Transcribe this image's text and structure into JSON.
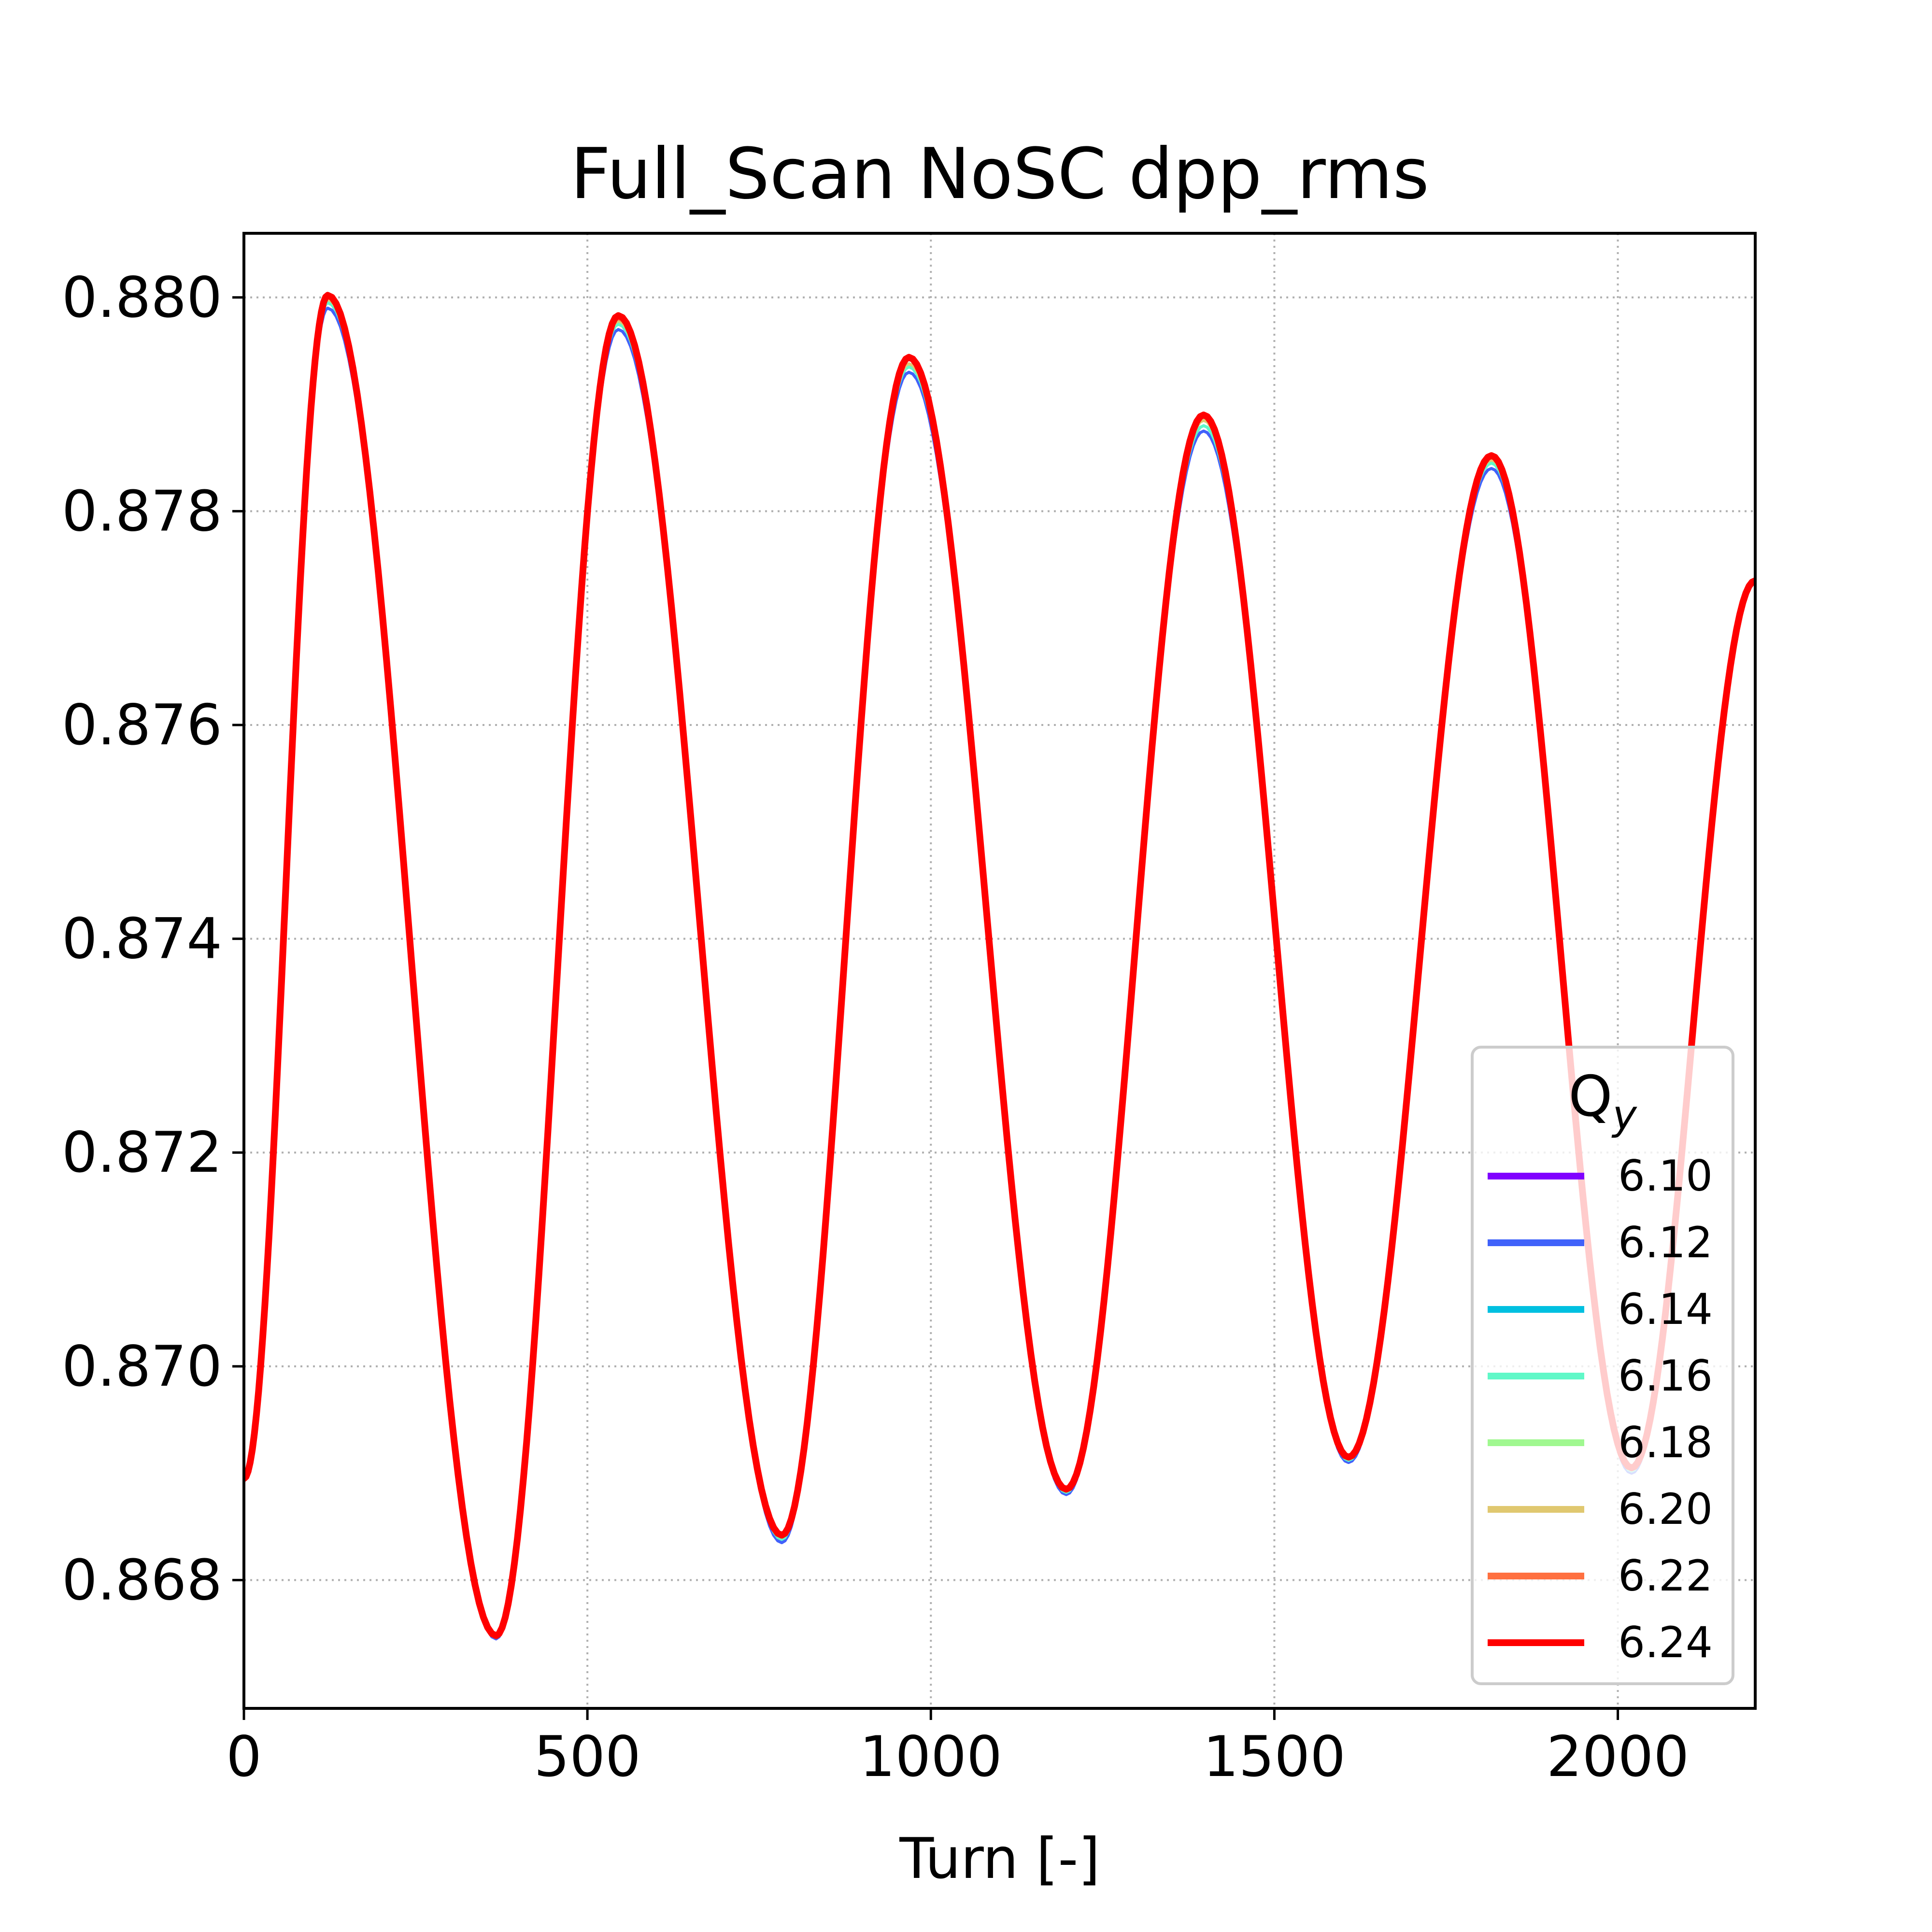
{
  "chart_data": {
    "type": "line",
    "title": "Full_Scan NoSC dpp_rms",
    "xlabel": "Turn [-]",
    "ylabel": "",
    "xlim": [
      0,
      2200
    ],
    "ylim": [
      0.8668,
      0.8806
    ],
    "x_ticks": [
      "0",
      "500",
      "1000",
      "1500",
      "2000"
    ],
    "x_tick_values": [
      0,
      500,
      1000,
      1500,
      2000
    ],
    "y_ticks": [
      "0.868",
      "0.870",
      "0.872",
      "0.874",
      "0.876",
      "0.878",
      "0.880"
    ],
    "y_tick_values": [
      0.868,
      0.87,
      0.872,
      0.874,
      0.876,
      0.878,
      0.88
    ],
    "grid": true,
    "legend": {
      "title_main": "Q",
      "title_sub": "y",
      "placement": "lower-right"
    },
    "x": [
      0,
      122,
      367,
      545,
      783,
      968,
      1197,
      1397,
      1608,
      1816,
      2020,
      2200
    ],
    "series": [
      {
        "name": "6.10",
        "color": "#8000ff",
        "values": [
          0.86895,
          0.8799,
          0.86745,
          0.8797,
          0.86835,
          0.8793,
          0.8688,
          0.87875,
          0.8691,
          0.8784,
          0.869,
          0.87735
        ]
      },
      {
        "name": "6.12",
        "color": "#4062fa",
        "values": [
          0.86895,
          0.8799,
          0.86745,
          0.8797,
          0.86835,
          0.8793,
          0.8688,
          0.87875,
          0.8691,
          0.8784,
          0.869,
          0.87735
        ]
      },
      {
        "name": "6.14",
        "color": "#00c0e0",
        "values": [
          0.86895,
          0.87995,
          0.86746,
          0.87975,
          0.86838,
          0.87935,
          0.86882,
          0.8788,
          0.86912,
          0.87845,
          0.86902,
          0.87735
        ]
      },
      {
        "name": "6.16",
        "color": "#60f8c8",
        "values": [
          0.86895,
          0.87995,
          0.86746,
          0.87975,
          0.86838,
          0.87935,
          0.86882,
          0.8788,
          0.86912,
          0.87845,
          0.86902,
          0.87735
        ]
      },
      {
        "name": "6.18",
        "color": "#a0f890",
        "values": [
          0.86895,
          0.87998,
          0.86747,
          0.87978,
          0.8684,
          0.87938,
          0.86884,
          0.87885,
          0.86914,
          0.87848,
          0.86904,
          0.87735
        ]
      },
      {
        "name": "6.20",
        "color": "#e0c870",
        "values": [
          0.86895,
          0.87998,
          0.86747,
          0.87978,
          0.8684,
          0.87938,
          0.86884,
          0.87885,
          0.86914,
          0.87848,
          0.86904,
          0.87735
        ]
      },
      {
        "name": "6.22",
        "color": "#ff7040",
        "values": [
          0.86895,
          0.88,
          0.86748,
          0.8798,
          0.86842,
          0.87942,
          0.86885,
          0.87888,
          0.86915,
          0.8785,
          0.86905,
          0.87735
        ]
      },
      {
        "name": "6.24",
        "color": "#ff0000",
        "values": [
          0.86895,
          0.88002,
          0.86748,
          0.87983,
          0.86842,
          0.87944,
          0.86885,
          0.8789,
          0.86915,
          0.87852,
          0.86905,
          0.87735
        ]
      }
    ]
  }
}
